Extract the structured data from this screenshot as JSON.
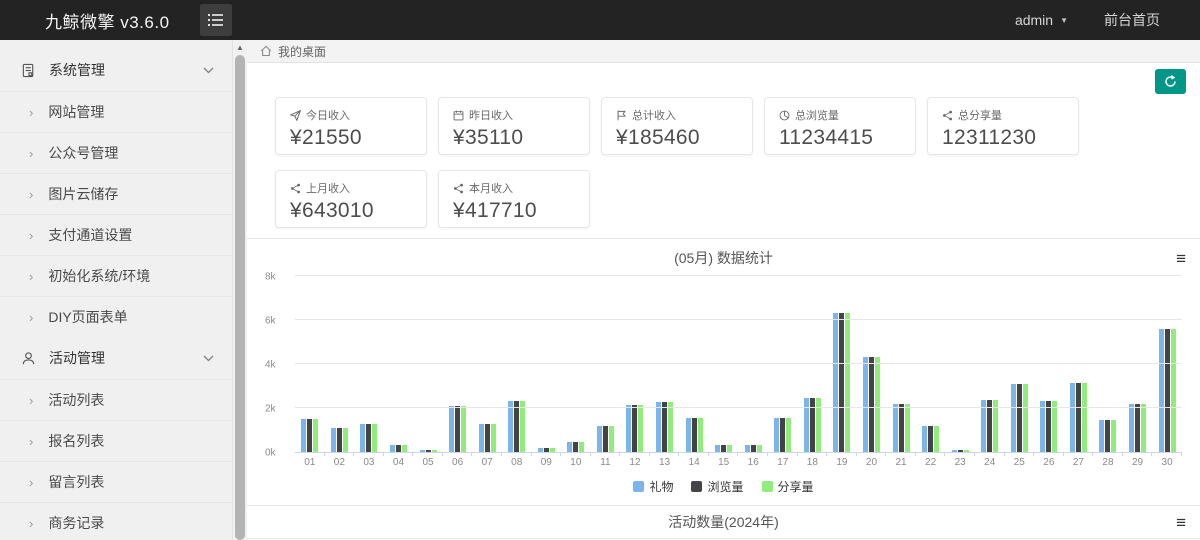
{
  "header": {
    "brand": "九鲸微擎 v3.6.0",
    "user": "admin",
    "frontend_link": "前台首页"
  },
  "breadcrumb": {
    "icon": "home-icon",
    "label": "我的桌面"
  },
  "sidebar": {
    "sections": [
      {
        "label": "系统管理",
        "icon": "file-text-icon",
        "items": [
          "网站管理",
          "公众号管理",
          "图片云储存",
          "支付通道设置",
          "初始化系统/环境",
          "DIY页面表单"
        ]
      },
      {
        "label": "活动管理",
        "icon": "user-icon",
        "items": [
          "活动列表",
          "报名列表",
          "留言列表",
          "商务记录"
        ]
      }
    ]
  },
  "toolbar": {
    "refresh_icon": "refresh-icon"
  },
  "stats": {
    "rows": [
      [
        {
          "icon": "plane-icon",
          "label": "今日收入",
          "value": "¥21550"
        },
        {
          "icon": "calendar-icon",
          "label": "昨日收入",
          "value": "¥35110"
        },
        {
          "icon": "flag-icon",
          "label": "总计收入",
          "value": "¥185460"
        },
        {
          "icon": "pie-chart-icon",
          "label": "总浏览量",
          "value": "11234415"
        },
        {
          "icon": "share-icon",
          "label": "总分享量",
          "value": "12311230"
        }
      ],
      [
        {
          "icon": "share-icon",
          "label": "上月收入",
          "value": "¥643010"
        },
        {
          "icon": "share-icon",
          "label": "本月收入",
          "value": "¥417710"
        }
      ]
    ]
  },
  "colors": {
    "accent_teal": "#009688",
    "header_bg": "#232323",
    "sidebar_bg": "#f0f0f0"
  },
  "chart_data": [
    {
      "type": "bar",
      "title": "(05月) 数据统计",
      "categories": [
        "01",
        "02",
        "03",
        "04",
        "05",
        "06",
        "07",
        "08",
        "09",
        "10",
        "11",
        "12",
        "13",
        "14",
        "15",
        "16",
        "17",
        "18",
        "19",
        "20",
        "21",
        "22",
        "23",
        "24",
        "25",
        "26",
        "27",
        "28",
        "29",
        "30"
      ],
      "series": [
        {
          "name": "礼物",
          "color": "#7cb5ec",
          "values": [
            1500,
            1100,
            1250,
            300,
            100,
            2100,
            1250,
            2300,
            200,
            450,
            1200,
            2150,
            2250,
            1550,
            300,
            300,
            1550,
            2450,
            6300,
            4300,
            2200,
            1200,
            100,
            2350,
            3100,
            2300,
            3150,
            1450,
            2200,
            5600
          ]
        },
        {
          "name": "浏览量",
          "color": "#434348",
          "values": [
            1500,
            1100,
            1250,
            300,
            100,
            2100,
            1250,
            2300,
            200,
            450,
            1200,
            2150,
            2250,
            1550,
            300,
            300,
            1550,
            2450,
            6300,
            4300,
            2200,
            1200,
            100,
            2350,
            3100,
            2300,
            3150,
            1450,
            2200,
            5600
          ]
        },
        {
          "name": "分享量",
          "color": "#90ed7d",
          "values": [
            1500,
            1100,
            1250,
            300,
            100,
            2100,
            1250,
            2300,
            200,
            450,
            1200,
            2150,
            2250,
            1550,
            300,
            300,
            1550,
            2450,
            6300,
            4300,
            2200,
            1200,
            100,
            2350,
            3100,
            2300,
            3150,
            1450,
            2200,
            5600
          ]
        }
      ],
      "ylim": [
        0,
        8000
      ],
      "yticks": [
        "0k",
        "2k",
        "4k",
        "6k",
        "8k"
      ],
      "grid": true,
      "legend_position": "bottom"
    },
    {
      "type": "bar",
      "title": "活动数量(2024年)",
      "categories": [],
      "series": []
    }
  ]
}
